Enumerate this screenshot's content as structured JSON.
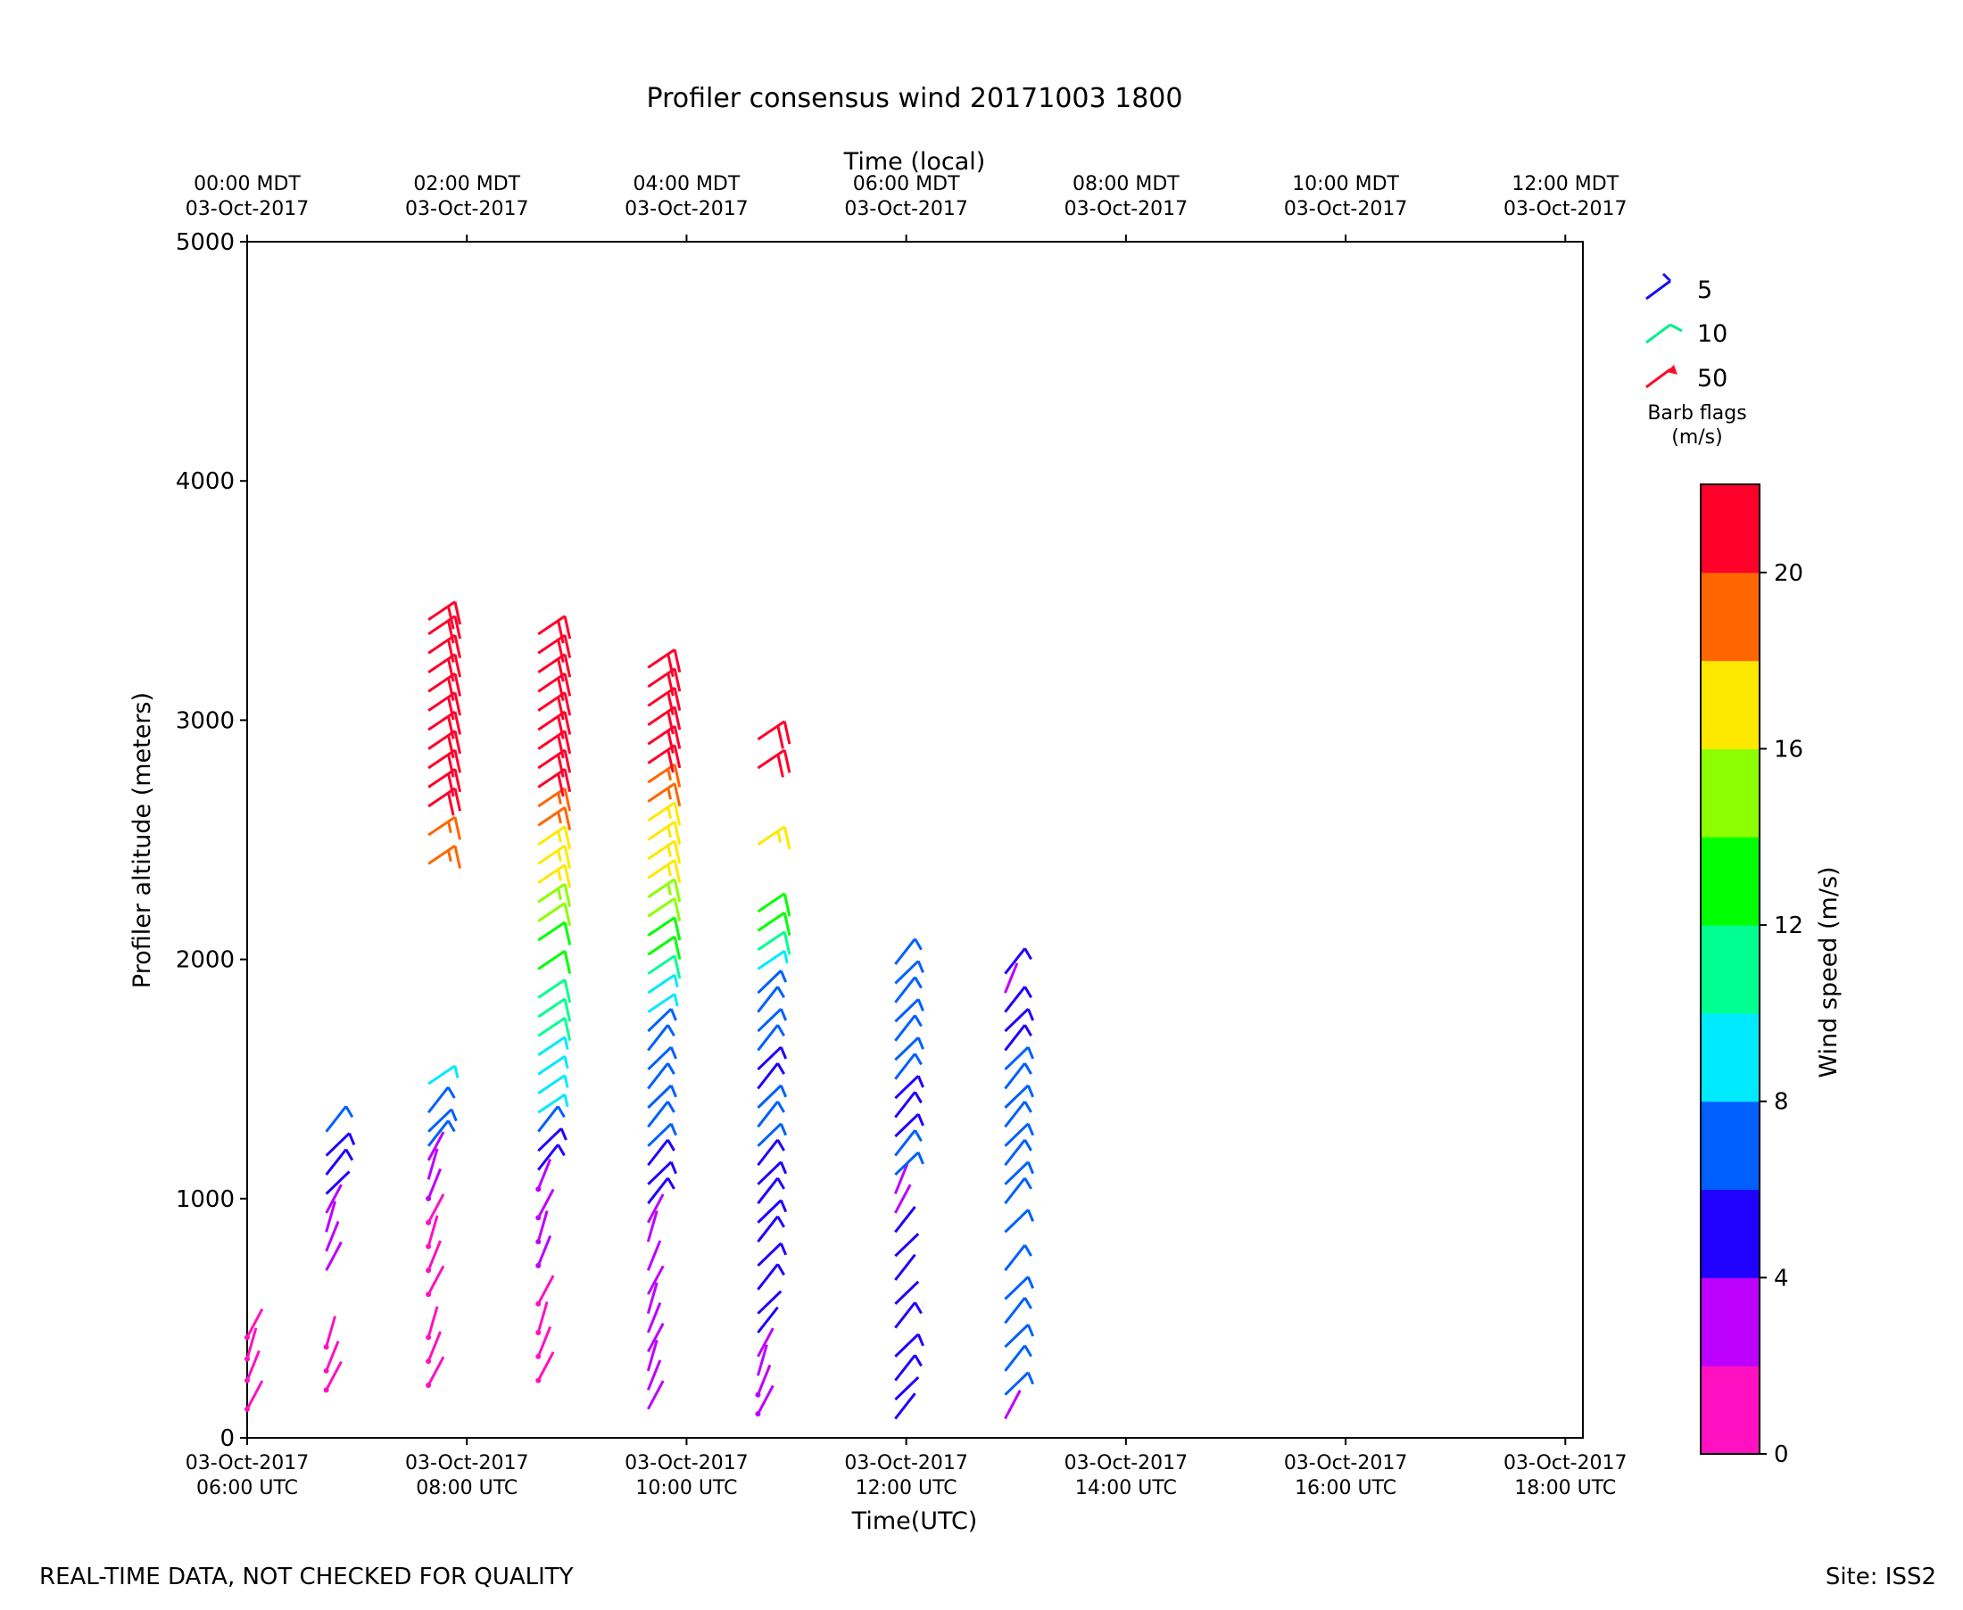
{
  "chart_data": {
    "type": "wind-barb time-height",
    "title": "Profiler consensus wind 20171003 1800",
    "xlabel_bottom": "Time(UTC)",
    "xlabel_top": "Time (local)",
    "ylabel": "Profiler altitude (meters)",
    "ylim": [
      0,
      5000
    ],
    "yticks": [
      0,
      1000,
      2000,
      3000,
      4000,
      5000
    ],
    "xlim_utc_hours": [
      6,
      18.16
    ],
    "x_ticks_bottom": [
      {
        "hour": 6,
        "date": "03-Oct-2017",
        "time": "06:00 UTC"
      },
      {
        "hour": 8,
        "date": "03-Oct-2017",
        "time": "08:00 UTC"
      },
      {
        "hour": 10,
        "date": "03-Oct-2017",
        "time": "10:00 UTC"
      },
      {
        "hour": 12,
        "date": "03-Oct-2017",
        "time": "12:00 UTC"
      },
      {
        "hour": 14,
        "date": "03-Oct-2017",
        "time": "14:00 UTC"
      },
      {
        "hour": 16,
        "date": "03-Oct-2017",
        "time": "16:00 UTC"
      },
      {
        "hour": 18,
        "date": "03-Oct-2017",
        "time": "18:00 UTC"
      }
    ],
    "x_ticks_top": [
      {
        "hour": 6,
        "time": "00:00 MDT",
        "date": "03-Oct-2017"
      },
      {
        "hour": 8,
        "time": "02:00 MDT",
        "date": "03-Oct-2017"
      },
      {
        "hour": 10,
        "time": "04:00 MDT",
        "date": "03-Oct-2017"
      },
      {
        "hour": 12,
        "time": "06:00 MDT",
        "date": "03-Oct-2017"
      },
      {
        "hour": 14,
        "time": "08:00 MDT",
        "date": "03-Oct-2017"
      },
      {
        "hour": 16,
        "time": "10:00 MDT",
        "date": "03-Oct-2017"
      },
      {
        "hour": 18,
        "time": "12:00 MDT",
        "date": "03-Oct-2017"
      }
    ],
    "barb_legend": {
      "entries": [
        {
          "label": "5",
          "color": "#1a10f0"
        },
        {
          "label": "10",
          "color": "#00f08a"
        },
        {
          "label": "50",
          "color": "#ff0a2d"
        }
      ],
      "title_line1": "Barb flags",
      "title_line2": "(m/s)"
    },
    "colorbar": {
      "label": "Wind speed (m/s)",
      "min": 0,
      "max": 22,
      "ticks": [
        "0",
        "4",
        "8",
        "12",
        "16",
        "20"
      ],
      "tick_values": [
        0,
        4,
        8,
        12,
        16,
        20
      ],
      "colors": [
        "#ff10c0",
        "#be00ff",
        "#2000ff",
        "#0060ff",
        "#00eaff",
        "#00ff90",
        "#00ff00",
        "#8cff00",
        "#ffe800",
        "#ff6600",
        "#ff002a"
      ]
    },
    "profiles": [
      {
        "hour": 6.0,
        "levels": [
          [
            120,
            1.0
          ],
          [
            240,
            1.2
          ],
          [
            330,
            1.5
          ],
          [
            420,
            1.4
          ]
        ]
      },
      {
        "hour": 6.72,
        "levels": [
          [
            200,
            1.5
          ],
          [
            280,
            1.6
          ],
          [
            380,
            1.8
          ],
          [
            700,
            2.8
          ],
          [
            780,
            3.0
          ],
          [
            860,
            3.2
          ],
          [
            940,
            3.4
          ],
          [
            1020,
            4.5
          ],
          [
            1100,
            5.2
          ],
          [
            1180,
            5.5
          ],
          [
            1280,
            6.0
          ]
        ]
      },
      {
        "hour": 7.65,
        "levels": [
          [
            220,
            1.6
          ],
          [
            320,
            1.8
          ],
          [
            420,
            1.9
          ],
          [
            600,
            1.8
          ],
          [
            700,
            1.9
          ],
          [
            800,
            1.8
          ],
          [
            900,
            1.7
          ],
          [
            1000,
            2.4
          ],
          [
            1080,
            2.6
          ],
          [
            1160,
            2.8
          ],
          [
            1220,
            6.2
          ],
          [
            1280,
            6.4
          ],
          [
            1360,
            6.8
          ],
          [
            1480,
            9.0
          ],
          [
            2400,
            19.5
          ],
          [
            2520,
            19.0
          ],
          [
            2640,
            20.5
          ],
          [
            2720,
            21
          ],
          [
            2800,
            21
          ],
          [
            2880,
            21
          ],
          [
            2960,
            21
          ],
          [
            3040,
            21
          ],
          [
            3120,
            21
          ],
          [
            3200,
            21
          ],
          [
            3280,
            21
          ],
          [
            3360,
            21
          ],
          [
            3420,
            21
          ]
        ]
      },
      {
        "hour": 8.65,
        "levels": [
          [
            240,
            1.6
          ],
          [
            340,
            1.7
          ],
          [
            440,
            1.8
          ],
          [
            560,
            1.9
          ],
          [
            720,
            2.0
          ],
          [
            820,
            2.1
          ],
          [
            920,
            2.2
          ],
          [
            1040,
            2.3
          ],
          [
            1120,
            5.0
          ],
          [
            1200,
            5.4
          ],
          [
            1280,
            7.0
          ],
          [
            1360,
            8.6
          ],
          [
            1440,
            9.0
          ],
          [
            1520,
            9.2
          ],
          [
            1600,
            9.5
          ],
          [
            1680,
            10.0
          ],
          [
            1760,
            10.5
          ],
          [
            1840,
            11.0
          ],
          [
            1960,
            12.5
          ],
          [
            2080,
            13.5
          ],
          [
            2160,
            14.5
          ],
          [
            2240,
            15.5
          ],
          [
            2320,
            16.5
          ],
          [
            2400,
            17.0
          ],
          [
            2480,
            17.5
          ],
          [
            2560,
            18.5
          ],
          [
            2640,
            19.5
          ],
          [
            2720,
            21
          ],
          [
            2800,
            21
          ],
          [
            2880,
            21
          ],
          [
            2960,
            21
          ],
          [
            3040,
            21
          ],
          [
            3120,
            21
          ],
          [
            3200,
            21
          ],
          [
            3280,
            21
          ],
          [
            3360,
            21
          ]
        ]
      },
      {
        "hour": 9.65,
        "levels": [
          [
            120,
            2.6
          ],
          [
            200,
            2.8
          ],
          [
            280,
            3.0
          ],
          [
            360,
            3.2
          ],
          [
            440,
            3.4
          ],
          [
            520,
            3.0
          ],
          [
            600,
            3.2
          ],
          [
            700,
            3.4
          ],
          [
            820,
            3.6
          ],
          [
            900,
            3.8
          ],
          [
            980,
            5.0
          ],
          [
            1060,
            5.4
          ],
          [
            1140,
            5.6
          ],
          [
            1220,
            6.2
          ],
          [
            1300,
            6.5
          ],
          [
            1380,
            6.8
          ],
          [
            1460,
            7.0
          ],
          [
            1540,
            7.2
          ],
          [
            1620,
            7.5
          ],
          [
            1700,
            7.8
          ],
          [
            1780,
            8.5
          ],
          [
            1860,
            9.5
          ],
          [
            1940,
            10.5
          ],
          [
            2020,
            12.0
          ],
          [
            2100,
            13.0
          ],
          [
            2180,
            14.0
          ],
          [
            2260,
            15.0
          ],
          [
            2340,
            16.0
          ],
          [
            2420,
            16.5
          ],
          [
            2500,
            17.0
          ],
          [
            2580,
            17.5
          ],
          [
            2660,
            18.0
          ],
          [
            2740,
            19.0
          ],
          [
            2820,
            20.0
          ],
          [
            2900,
            21
          ],
          [
            2980,
            21
          ],
          [
            3060,
            21
          ],
          [
            3140,
            21
          ],
          [
            3220,
            21
          ]
        ]
      },
      {
        "hour": 10.65,
        "levels": [
          [
            100,
            2.2
          ],
          [
            180,
            2.4
          ],
          [
            260,
            2.6
          ],
          [
            340,
            3.0
          ],
          [
            440,
            4.6
          ],
          [
            520,
            4.8
          ],
          [
            620,
            5.0
          ],
          [
            720,
            5.2
          ],
          [
            820,
            5.0
          ],
          [
            900,
            5.2
          ],
          [
            980,
            5.4
          ],
          [
            1060,
            5.6
          ],
          [
            1140,
            5.8
          ],
          [
            1220,
            6.0
          ],
          [
            1300,
            6.2
          ],
          [
            1380,
            6.4
          ],
          [
            1460,
            5.6
          ],
          [
            1540,
            5.8
          ],
          [
            1620,
            6.0
          ],
          [
            1700,
            6.2
          ],
          [
            1780,
            6.4
          ],
          [
            1860,
            6.6
          ],
          [
            1960,
            9.0
          ],
          [
            2040,
            10.0
          ],
          [
            2120,
            12.5
          ],
          [
            2200,
            13.0
          ],
          [
            2480,
            17.0
          ],
          [
            2800,
            21
          ],
          [
            2920,
            21
          ]
        ]
      },
      {
        "hour": 11.9,
        "levels": [
          [
            80,
            4.8
          ],
          [
            160,
            4.9
          ],
          [
            240,
            5.0
          ],
          [
            340,
            5.2
          ],
          [
            460,
            5.0
          ],
          [
            560,
            4.8
          ],
          [
            660,
            4.6
          ],
          [
            760,
            4.8
          ],
          [
            860,
            4.6
          ],
          [
            940,
            3.5
          ],
          [
            1020,
            3.2
          ],
          [
            1100,
            6.2
          ],
          [
            1180,
            6.0
          ],
          [
            1260,
            5.8
          ],
          [
            1340,
            5.6
          ],
          [
            1420,
            5.8
          ],
          [
            1500,
            6.0
          ],
          [
            1580,
            6.2
          ],
          [
            1660,
            6.4
          ],
          [
            1740,
            6.6
          ],
          [
            1820,
            6.8
          ],
          [
            1900,
            7.0
          ],
          [
            1980,
            7.2
          ]
        ]
      },
      {
        "hour": 12.9,
        "levels": [
          [
            80,
            2.5
          ],
          [
            180,
            6.5
          ],
          [
            280,
            6.8
          ],
          [
            380,
            7.0
          ],
          [
            480,
            7.2
          ],
          [
            580,
            7.4
          ],
          [
            700,
            6.8
          ],
          [
            860,
            6.5
          ],
          [
            980,
            7.0
          ],
          [
            1060,
            7.2
          ],
          [
            1140,
            7.4
          ],
          [
            1220,
            7.6
          ],
          [
            1300,
            7.8
          ],
          [
            1380,
            7.0
          ],
          [
            1460,
            6.5
          ],
          [
            1540,
            6.2
          ],
          [
            1620,
            5.8
          ],
          [
            1700,
            5.6
          ],
          [
            1780,
            5.4
          ],
          [
            1860,
            3.0
          ],
          [
            1940,
            5.8
          ]
        ]
      }
    ]
  },
  "footer": {
    "left": "REAL-TIME DATA, NOT CHECKED FOR QUALITY",
    "right": "Site: ISS2"
  }
}
